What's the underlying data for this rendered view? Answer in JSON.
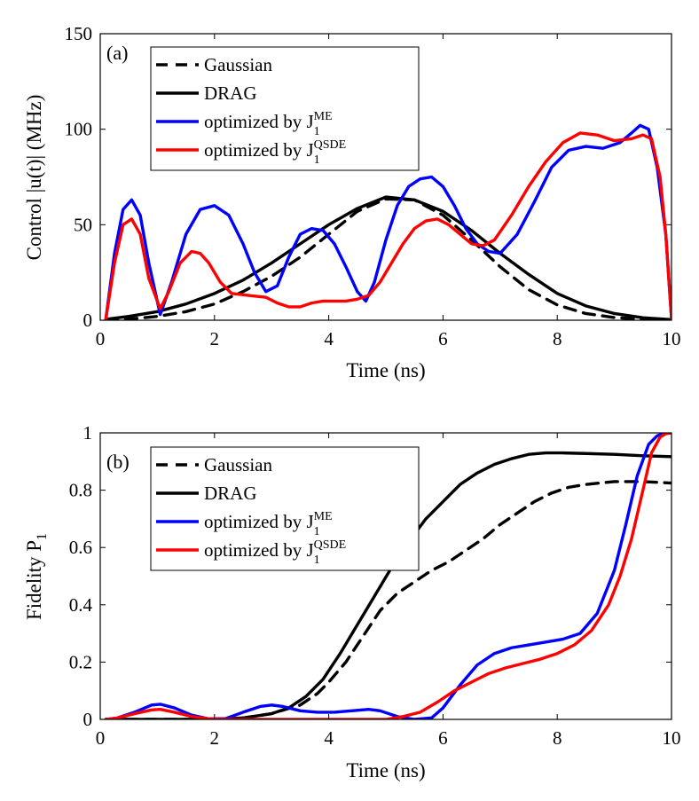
{
  "chart_data": [
    {
      "type": "line",
      "panel_label": "(a)",
      "xlabel": "Time (ns)",
      "ylabel": "Control |u(t)| (MHz)",
      "xlim": [
        0,
        10
      ],
      "ylim": [
        0,
        150
      ],
      "xticks": [
        0,
        2,
        4,
        6,
        8,
        10
      ],
      "yticks": [
        0,
        50,
        100,
        150
      ],
      "legend_position": "top-left",
      "series": [
        {
          "name": "Gaussian",
          "legend_main": "Gaussian",
          "color": "#000000",
          "dash": "dashed",
          "x": [
            0.1,
            0.5,
            1.0,
            1.5,
            2.0,
            2.5,
            3.0,
            3.5,
            4.0,
            4.5,
            5.0,
            5.5,
            6.0,
            6.5,
            7.0,
            7.5,
            8.0,
            8.5,
            9.0,
            9.5,
            10.0
          ],
          "y": [
            0.2,
            0.6,
            2.0,
            4.5,
            8.5,
            15.0,
            23.0,
            33.0,
            45.0,
            57.0,
            63.5,
            63.0,
            55.0,
            42.0,
            28.0,
            16.0,
            8.0,
            3.5,
            1.4,
            0.5,
            0.1
          ]
        },
        {
          "name": "DRAG",
          "legend_main": "DRAG",
          "color": "#000000",
          "dash": "solid",
          "x": [
            0.1,
            0.5,
            1.0,
            1.5,
            2.0,
            2.5,
            3.0,
            3.5,
            4.0,
            4.5,
            5.0,
            5.5,
            6.0,
            6.5,
            7.0,
            7.5,
            8.0,
            8.5,
            9.0,
            9.5,
            10.0
          ],
          "y": [
            0.5,
            2.0,
            4.5,
            8.5,
            14.0,
            21.0,
            30.0,
            40.0,
            50.0,
            58.5,
            64.5,
            63.0,
            57.0,
            47.0,
            35.0,
            24.0,
            14.0,
            7.5,
            3.5,
            1.3,
            0.3
          ]
        },
        {
          "name": "optimized by J1^ME",
          "legend_main": "optimized by J",
          "legend_sub": "1",
          "legend_sup": "ME",
          "color": "#0000ff",
          "dash": "solid",
          "x": [
            0.1,
            0.25,
            0.4,
            0.55,
            0.7,
            0.85,
            1.05,
            1.25,
            1.5,
            1.75,
            2.0,
            2.25,
            2.5,
            2.7,
            2.9,
            3.1,
            3.3,
            3.5,
            3.7,
            3.9,
            4.1,
            4.3,
            4.5,
            4.65,
            4.8,
            5.0,
            5.2,
            5.4,
            5.6,
            5.8,
            6.0,
            6.2,
            6.4,
            6.6,
            6.8,
            7.0,
            7.3,
            7.6,
            7.9,
            8.2,
            8.5,
            8.8,
            9.1,
            9.3,
            9.45,
            9.6,
            9.75,
            9.9,
            10.0
          ],
          "y": [
            1,
            35,
            58,
            63,
            55,
            30,
            3,
            20,
            45,
            58,
            60,
            55,
            40,
            25,
            15,
            18,
            33,
            45,
            48,
            47,
            40,
            28,
            15,
            10,
            20,
            42,
            60,
            70,
            74,
            75,
            70,
            60,
            48,
            40,
            36,
            35,
            45,
            62,
            80,
            89,
            91,
            90,
            93,
            98,
            102,
            100,
            80,
            45,
            1
          ]
        },
        {
          "name": "optimized by J1^QSDE",
          "legend_main": "optimized by J",
          "legend_sub": "1",
          "legend_sup": "QSDE",
          "color": "#ff0000",
          "dash": "solid",
          "x": [
            0.1,
            0.25,
            0.4,
            0.55,
            0.7,
            0.85,
            1.05,
            1.2,
            1.4,
            1.6,
            1.75,
            1.9,
            2.1,
            2.3,
            2.6,
            2.9,
            3.1,
            3.3,
            3.5,
            3.7,
            3.9,
            4.1,
            4.3,
            4.5,
            4.7,
            4.9,
            5.1,
            5.3,
            5.5,
            5.7,
            5.9,
            6.1,
            6.3,
            6.5,
            6.7,
            6.9,
            7.2,
            7.5,
            7.8,
            8.1,
            8.4,
            8.7,
            9.0,
            9.3,
            9.5,
            9.65,
            9.8,
            9.9,
            10.0
          ],
          "y": [
            1,
            30,
            50,
            53,
            45,
            22,
            6,
            15,
            30,
            36,
            35,
            30,
            20,
            14,
            13,
            12,
            9,
            7,
            7,
            9,
            10,
            10,
            10,
            11,
            13,
            20,
            30,
            40,
            48,
            52,
            53,
            50,
            45,
            40,
            39,
            42,
            55,
            70,
            83,
            93,
            98,
            97,
            94,
            95,
            97,
            95,
            75,
            45,
            1
          ]
        }
      ]
    },
    {
      "type": "line",
      "panel_label": "(b)",
      "xlabel": "Time (ns)",
      "ylabel": "Fidelity P1",
      "ylabel_main": "Fidelity P",
      "ylabel_sub": "1",
      "xlim": [
        0,
        10
      ],
      "ylim": [
        0,
        1
      ],
      "xticks": [
        0,
        2,
        4,
        6,
        8,
        10
      ],
      "yticks": [
        0,
        0.2,
        0.4,
        0.6,
        0.8,
        1
      ],
      "legend_position": "top-left",
      "series": [
        {
          "name": "Gaussian",
          "legend_main": "Gaussian",
          "color": "#000000",
          "dash": "dashed",
          "x": [
            0.1,
            1.0,
            2.0,
            2.5,
            3.0,
            3.5,
            3.8,
            4.0,
            4.3,
            4.6,
            4.9,
            5.2,
            5.5,
            5.8,
            6.1,
            6.4,
            6.7,
            7.0,
            7.3,
            7.6,
            7.9,
            8.2,
            8.5,
            9.0,
            9.5,
            10.0
          ],
          "y": [
            0,
            0,
            0,
            0.005,
            0.02,
            0.05,
            0.09,
            0.13,
            0.2,
            0.29,
            0.38,
            0.44,
            0.48,
            0.52,
            0.55,
            0.59,
            0.63,
            0.68,
            0.72,
            0.76,
            0.79,
            0.81,
            0.82,
            0.83,
            0.83,
            0.825
          ]
        },
        {
          "name": "DRAG",
          "legend_main": "DRAG",
          "color": "#000000",
          "dash": "solid",
          "x": [
            0.1,
            1.0,
            2.0,
            2.5,
            3.0,
            3.3,
            3.6,
            3.9,
            4.2,
            4.5,
            4.8,
            5.1,
            5.4,
            5.7,
            6.0,
            6.3,
            6.6,
            6.9,
            7.2,
            7.5,
            7.8,
            8.1,
            8.5,
            9.0,
            9.5,
            10.0
          ],
          "y": [
            0,
            0,
            0,
            0.005,
            0.02,
            0.04,
            0.08,
            0.14,
            0.23,
            0.33,
            0.43,
            0.53,
            0.62,
            0.7,
            0.76,
            0.82,
            0.86,
            0.89,
            0.91,
            0.925,
            0.93,
            0.93,
            0.928,
            0.925,
            0.92,
            0.917
          ]
        },
        {
          "name": "optimized by J1^ME",
          "legend_main": "optimized by J",
          "legend_sub": "1",
          "legend_sup": "ME",
          "color": "#0000ff",
          "dash": "solid",
          "x": [
            0.1,
            0.3,
            0.6,
            0.9,
            1.05,
            1.3,
            1.6,
            1.9,
            2.2,
            2.5,
            2.8,
            3.0,
            3.2,
            3.5,
            3.8,
            4.1,
            4.4,
            4.7,
            4.9,
            5.2,
            5.5,
            5.8,
            6.0,
            6.3,
            6.6,
            6.9,
            7.2,
            7.5,
            7.8,
            8.1,
            8.4,
            8.7,
            9.0,
            9.2,
            9.4,
            9.6,
            9.75,
            9.9,
            10.0
          ],
          "y": [
            0,
            0.005,
            0.025,
            0.05,
            0.053,
            0.04,
            0.015,
            0.002,
            0.003,
            0.025,
            0.045,
            0.05,
            0.045,
            0.03,
            0.025,
            0.025,
            0.03,
            0.035,
            0.03,
            0.01,
            0,
            0.005,
            0.04,
            0.12,
            0.19,
            0.23,
            0.25,
            0.26,
            0.27,
            0.28,
            0.3,
            0.37,
            0.52,
            0.68,
            0.85,
            0.96,
            0.99,
            1.0,
            1.0
          ]
        },
        {
          "name": "optimized by J1^QSDE",
          "legend_main": "optimized by J",
          "legend_sub": "1",
          "legend_sup": "QSDE",
          "color": "#ff0000",
          "dash": "solid",
          "x": [
            0.1,
            0.3,
            0.6,
            0.9,
            1.05,
            1.3,
            1.6,
            1.9,
            2.2,
            2.5,
            2.8,
            3.1,
            3.5,
            4.0,
            4.5,
            5.0,
            5.3,
            5.6,
            5.9,
            6.2,
            6.5,
            6.8,
            7.1,
            7.4,
            7.7,
            8.0,
            8.3,
            8.6,
            8.9,
            9.1,
            9.3,
            9.5,
            9.65,
            9.8,
            9.9,
            10.0
          ],
          "y": [
            0,
            0.005,
            0.02,
            0.033,
            0.035,
            0.025,
            0.01,
            0.002,
            0,
            0,
            0,
            0,
            0,
            0,
            0,
            0,
            0.01,
            0.025,
            0.06,
            0.1,
            0.13,
            0.16,
            0.18,
            0.195,
            0.21,
            0.23,
            0.26,
            0.31,
            0.4,
            0.5,
            0.63,
            0.8,
            0.93,
            0.985,
            0.997,
            1.0
          ]
        }
      ]
    }
  ]
}
